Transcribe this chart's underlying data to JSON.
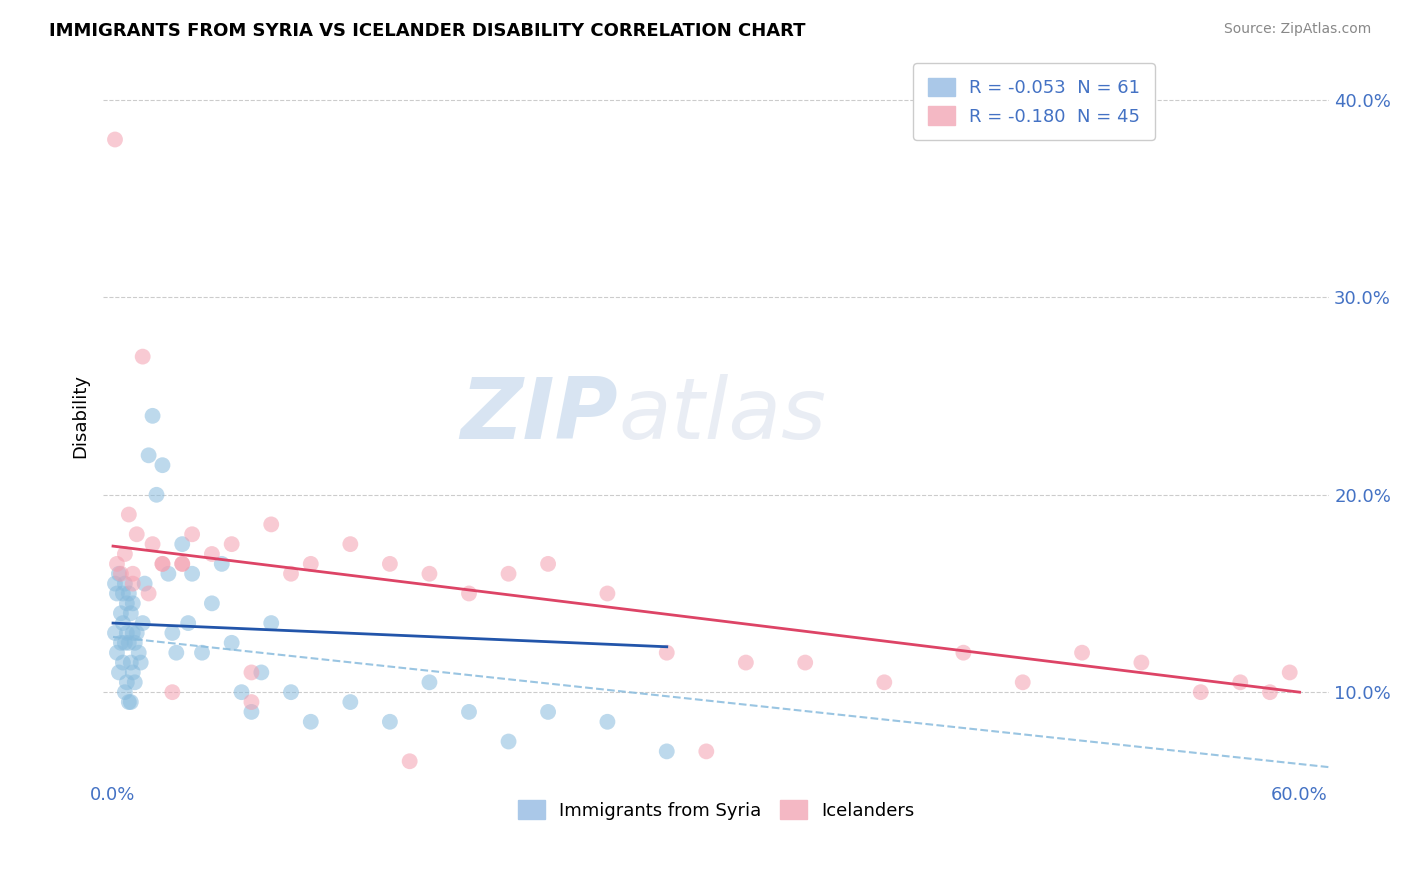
{
  "title": "IMMIGRANTS FROM SYRIA VS ICELANDER DISABILITY CORRELATION CHART",
  "source": "Source: ZipAtlas.com",
  "xlabel": "",
  "ylabel": "Disability",
  "legend_labels": [
    "Immigrants from Syria",
    "Icelanders"
  ],
  "legend_r": [
    -0.053,
    -0.18
  ],
  "legend_n": [
    61,
    45
  ],
  "blue_color": "#88bbdd",
  "pink_color": "#f4a0b0",
  "blue_line_color": "#2255aa",
  "pink_line_color": "#dd4466",
  "dashed_line_color": "#88bbdd",
  "watermark": "ZIPatlas",
  "xlim": [
    -0.005,
    0.615
  ],
  "ylim": [
    0.055,
    0.425
  ],
  "right_yticks": [
    0.1,
    0.2,
    0.3,
    0.4
  ],
  "right_yticklabels": [
    "10.0%",
    "20.0%",
    "30.0%",
    "40.0%"
  ],
  "bottom_xticks": [
    0.0,
    0.1,
    0.2,
    0.3,
    0.4,
    0.5,
    0.6
  ],
  "bottom_xticklabels": [
    "0.0%",
    "",
    "",
    "",
    "",
    "",
    "60.0%"
  ],
  "syria_x": [
    0.001,
    0.001,
    0.002,
    0.002,
    0.003,
    0.003,
    0.004,
    0.004,
    0.005,
    0.005,
    0.005,
    0.006,
    0.006,
    0.006,
    0.007,
    0.007,
    0.007,
    0.008,
    0.008,
    0.008,
    0.009,
    0.009,
    0.009,
    0.01,
    0.01,
    0.01,
    0.011,
    0.011,
    0.012,
    0.013,
    0.014,
    0.015,
    0.016,
    0.018,
    0.02,
    0.022,
    0.025,
    0.028,
    0.03,
    0.032,
    0.035,
    0.038,
    0.04,
    0.045,
    0.05,
    0.055,
    0.06,
    0.065,
    0.07,
    0.075,
    0.08,
    0.09,
    0.1,
    0.12,
    0.14,
    0.16,
    0.18,
    0.2,
    0.22,
    0.25,
    0.28
  ],
  "syria_y": [
    0.155,
    0.13,
    0.15,
    0.12,
    0.16,
    0.11,
    0.14,
    0.125,
    0.15,
    0.135,
    0.115,
    0.155,
    0.125,
    0.1,
    0.145,
    0.13,
    0.105,
    0.15,
    0.125,
    0.095,
    0.14,
    0.115,
    0.095,
    0.145,
    0.13,
    0.11,
    0.125,
    0.105,
    0.13,
    0.12,
    0.115,
    0.135,
    0.155,
    0.22,
    0.24,
    0.2,
    0.215,
    0.16,
    0.13,
    0.12,
    0.175,
    0.135,
    0.16,
    0.12,
    0.145,
    0.165,
    0.125,
    0.1,
    0.09,
    0.11,
    0.135,
    0.1,
    0.085,
    0.095,
    0.085,
    0.105,
    0.09,
    0.075,
    0.09,
    0.085,
    0.07
  ],
  "iceland_x": [
    0.001,
    0.002,
    0.004,
    0.006,
    0.008,
    0.01,
    0.012,
    0.015,
    0.018,
    0.02,
    0.025,
    0.03,
    0.035,
    0.04,
    0.05,
    0.06,
    0.07,
    0.08,
    0.09,
    0.1,
    0.12,
    0.14,
    0.16,
    0.18,
    0.2,
    0.22,
    0.25,
    0.28,
    0.32,
    0.35,
    0.39,
    0.43,
    0.46,
    0.49,
    0.52,
    0.55,
    0.57,
    0.585,
    0.595,
    0.01,
    0.025,
    0.035,
    0.07,
    0.15,
    0.3
  ],
  "iceland_y": [
    0.38,
    0.165,
    0.16,
    0.17,
    0.19,
    0.16,
    0.18,
    0.27,
    0.15,
    0.175,
    0.165,
    0.1,
    0.165,
    0.18,
    0.17,
    0.175,
    0.095,
    0.185,
    0.16,
    0.165,
    0.175,
    0.165,
    0.16,
    0.15,
    0.16,
    0.165,
    0.15,
    0.12,
    0.115,
    0.115,
    0.105,
    0.12,
    0.105,
    0.12,
    0.115,
    0.1,
    0.105,
    0.1,
    0.11,
    0.155,
    0.165,
    0.165,
    0.11,
    0.065,
    0.07
  ],
  "blue_line_x0": 0.0,
  "blue_line_x1": 0.28,
  "blue_line_y0": 0.135,
  "blue_line_y1": 0.123,
  "pink_line_x0": 0.0,
  "pink_line_x1": 0.6,
  "pink_line_y0": 0.174,
  "pink_line_y1": 0.1,
  "dash_line_x0": 0.0,
  "dash_line_x1": 0.615,
  "dash_line_y0": 0.128,
  "dash_line_y1": 0.062
}
